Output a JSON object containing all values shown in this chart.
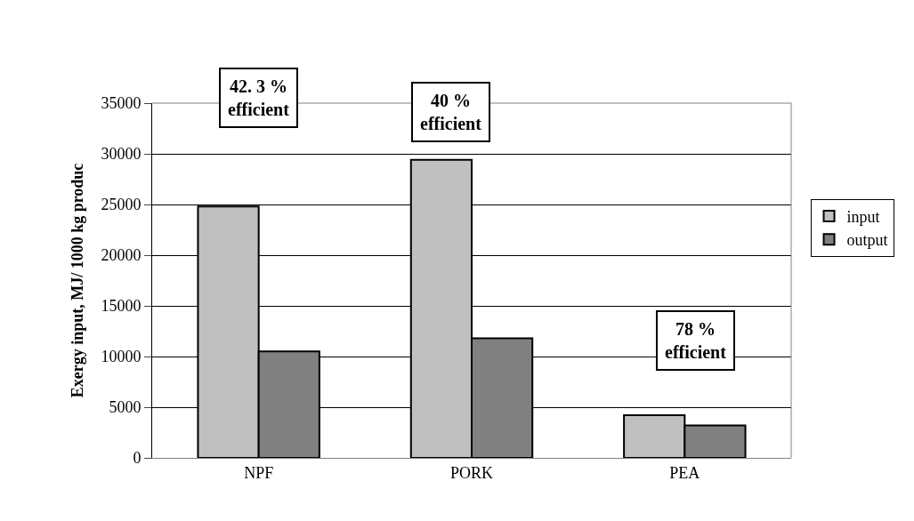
{
  "chart_data": {
    "type": "bar",
    "ylabel": "Exergy input, MJ/ 1000 kg produc",
    "categories": [
      "NPF",
      "PORK",
      "PEA"
    ],
    "series": [
      {
        "name": "input",
        "color": "#c0c0c0",
        "values": [
          24800,
          29400,
          4200
        ]
      },
      {
        "name": "output",
        "color": "#808080",
        "values": [
          10500,
          11800,
          3200
        ]
      }
    ],
    "ylim": [
      0,
      35000
    ],
    "yticks": [
      0,
      5000,
      10000,
      15000,
      20000,
      25000,
      30000,
      35000
    ],
    "grid": "y",
    "legend": "right",
    "annotations": [
      "42. 3 %\nefficient",
      "40 %\nefficient",
      "78 %\nefficient"
    ]
  }
}
